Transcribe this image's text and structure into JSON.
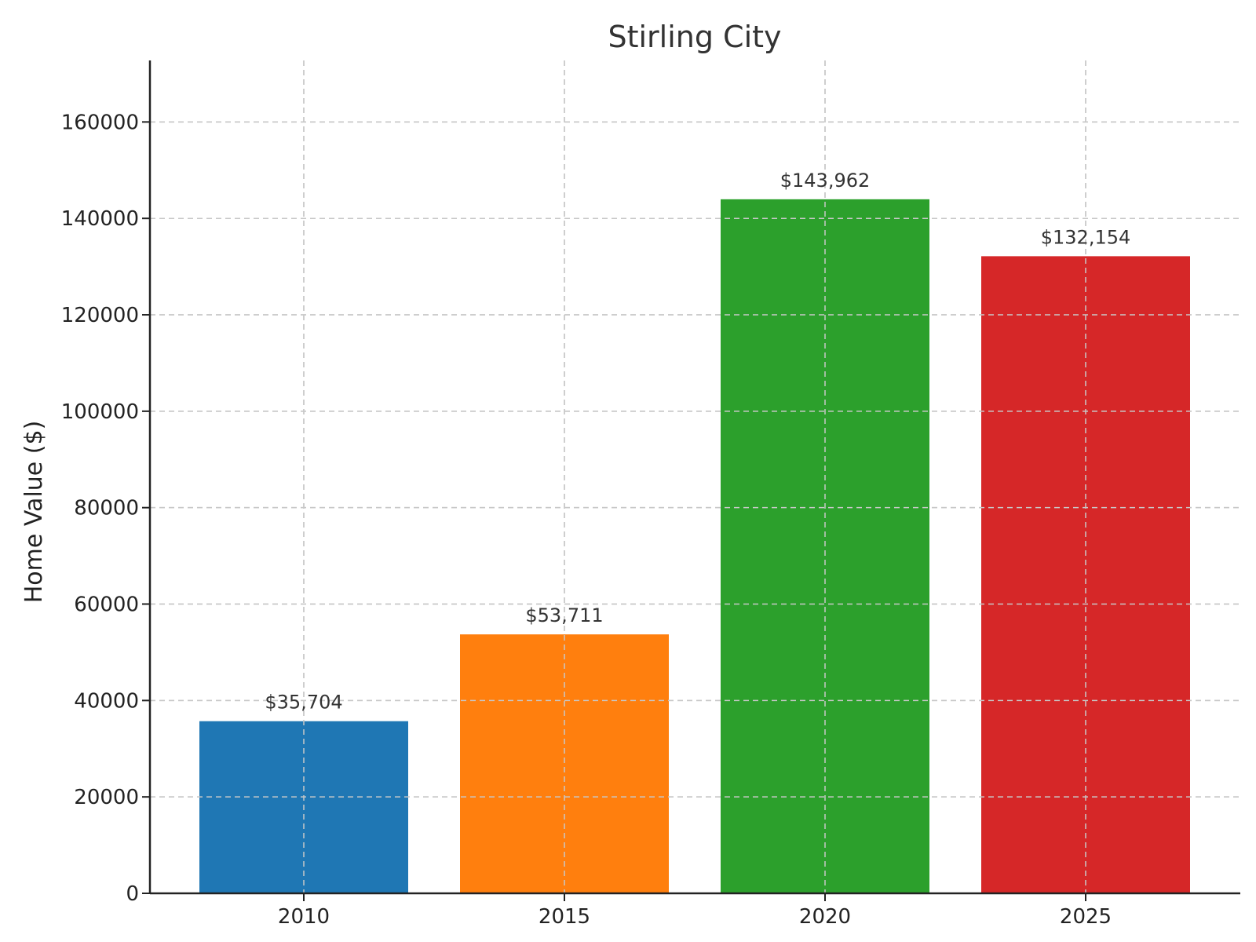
{
  "chart_data": {
    "type": "bar",
    "title": "Stirling City",
    "xlabel": "",
    "ylabel": "Home Value ($)",
    "categories": [
      "2010",
      "2015",
      "2020",
      "2025"
    ],
    "values": [
      35704,
      53711,
      143962,
      132154
    ],
    "value_labels": [
      "$35,704",
      "$53,711",
      "$143,962",
      "$132,154"
    ],
    "colors": [
      "#1f77b4",
      "#ff7f0e",
      "#2ca02c",
      "#d62728"
    ],
    "ylim": [
      0,
      172760
    ],
    "yticks": [
      0,
      20000,
      40000,
      60000,
      80000,
      100000,
      120000,
      140000,
      160000
    ],
    "ytick_labels": [
      "0",
      "20000",
      "40000",
      "60000",
      "80000",
      "100000",
      "120000",
      "140000",
      "160000"
    ],
    "grid": true,
    "legend": "none"
  }
}
